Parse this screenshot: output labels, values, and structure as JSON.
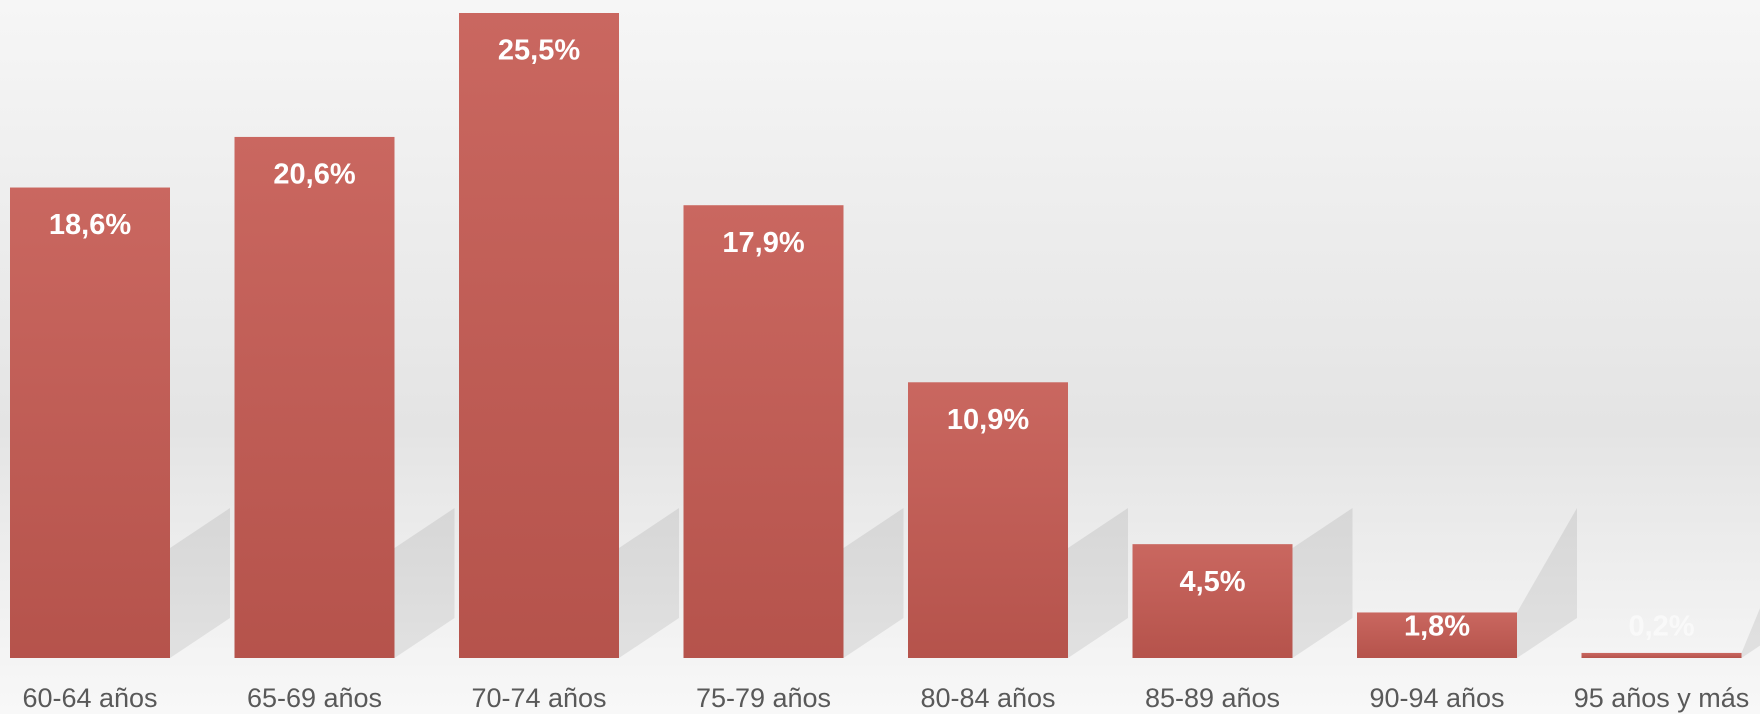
{
  "chart_data": {
    "type": "bar",
    "categories": [
      "60-64 años",
      "65-69 años",
      "70-74 años",
      "75-79 años",
      "80-84 años",
      "85-89 años",
      "90-94 años",
      "95 años y más"
    ],
    "values": [
      18.6,
      20.6,
      25.5,
      17.9,
      10.9,
      4.5,
      1.8,
      0.2
    ],
    "value_labels": [
      "18,6%",
      "20,6%",
      "25,5%",
      "17,9%",
      "10,9%",
      "4,5%",
      "1,8%",
      "0,2%"
    ],
    "color": "#c55a52"
  }
}
